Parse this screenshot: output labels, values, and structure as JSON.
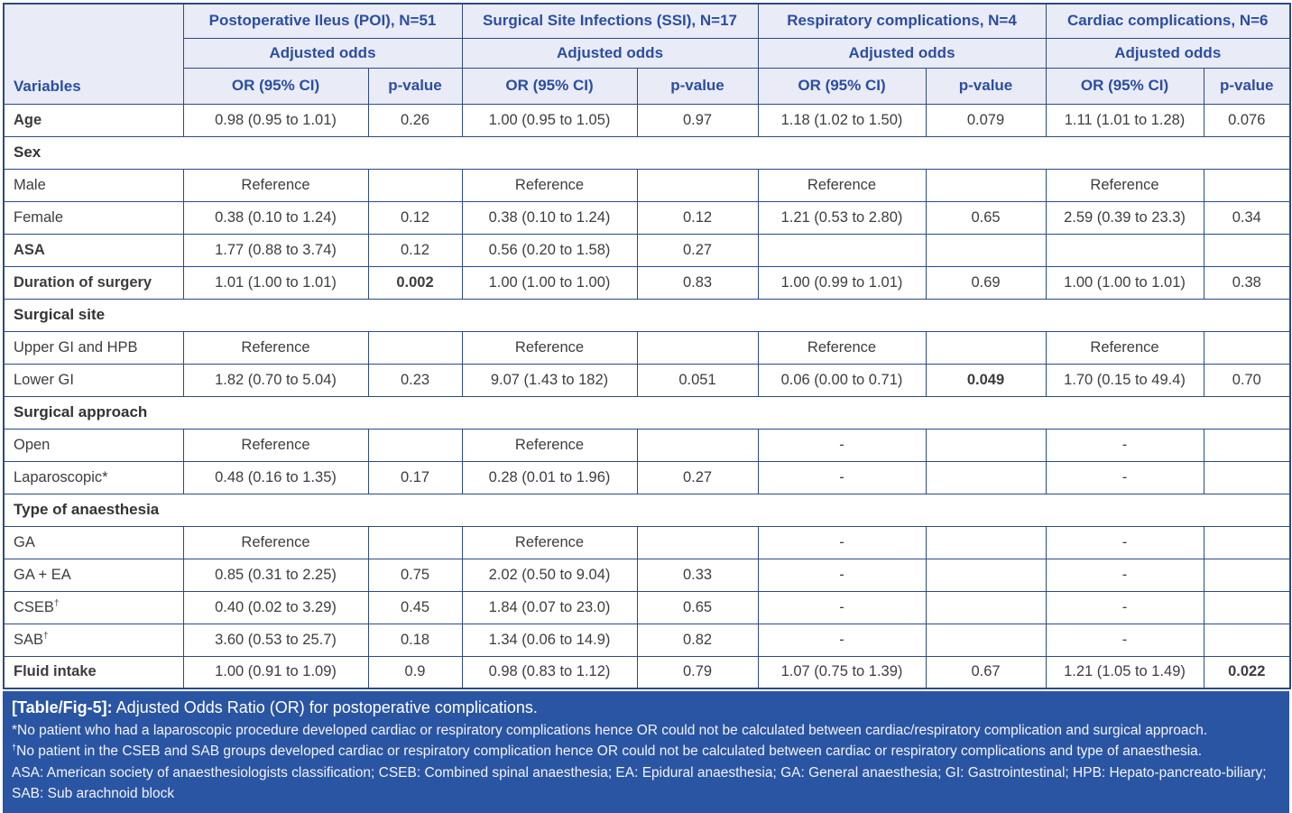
{
  "colors": {
    "header_bg": "#E9EBF6",
    "header_text": "#2B4EA2",
    "border": "#2B4A85",
    "body_text": "#3D3D3D",
    "footer_bg": "#2A55A3",
    "footer_text": "#FFFFFF"
  },
  "table": {
    "variables_header": "Variables",
    "groups": [
      {
        "title": "Postoperative Ileus (POI), N=51",
        "subtitle": "Adjusted odds",
        "or_header": "OR (95% CI)",
        "p_header": "p-value"
      },
      {
        "title": "Surgical Site Infections (SSI), N=17",
        "subtitle": "Adjusted odds",
        "or_header": "OR (95% CI)",
        "p_header": "p-value"
      },
      {
        "title": "Respiratory complications, N=4",
        "subtitle": "Adjusted odds",
        "or_header": "OR (95% CI)",
        "p_header": "p-value"
      },
      {
        "title": "Cardiac complications, N=6",
        "subtitle": "Adjusted odds",
        "or_header": "OR (95% CI)",
        "p_header": "p-value"
      }
    ],
    "rows": [
      {
        "type": "data",
        "label": "Age",
        "bold": true,
        "cells": [
          {
            "or": "0.98 (0.95 to 1.01)",
            "p": "0.26"
          },
          {
            "or": "1.00 (0.95 to 1.05)",
            "p": "0.97"
          },
          {
            "or": "1.18 (1.02 to 1.50)",
            "p": "0.079"
          },
          {
            "or": "1.11 (1.01 to 1.28)",
            "p": "0.076"
          }
        ]
      },
      {
        "type": "section",
        "label": "Sex"
      },
      {
        "type": "data",
        "label": "Male",
        "bold": false,
        "cells": [
          {
            "or": "Reference",
            "p": ""
          },
          {
            "or": "Reference",
            "p": ""
          },
          {
            "or": "Reference",
            "p": ""
          },
          {
            "or": "Reference",
            "p": ""
          }
        ]
      },
      {
        "type": "data",
        "label": "Female",
        "bold": false,
        "cells": [
          {
            "or": "0.38 (0.10 to 1.24)",
            "p": "0.12"
          },
          {
            "or": "0.38 (0.10 to 1.24)",
            "p": "0.12"
          },
          {
            "or": "1.21 (0.53 to 2.80)",
            "p": "0.65"
          },
          {
            "or": "2.59 (0.39 to 23.3)",
            "p": "0.34"
          }
        ]
      },
      {
        "type": "data",
        "label": "ASA",
        "bold": true,
        "cells": [
          {
            "or": "1.77 (0.88 to 3.74)",
            "p": "0.12"
          },
          {
            "or": "0.56 (0.20 to 1.58)",
            "p": "0.27"
          },
          {
            "or": "",
            "p": ""
          },
          {
            "or": "",
            "p": ""
          }
        ]
      },
      {
        "type": "data",
        "label": "Duration of surgery",
        "bold": true,
        "cells": [
          {
            "or": "1.01 (1.00 to 1.01)",
            "p": "0.002",
            "p_bold": true
          },
          {
            "or": "1.00 (1.00 to 1.00)",
            "p": "0.83"
          },
          {
            "or": "1.00 (0.99 to 1.01)",
            "p": "0.69"
          },
          {
            "or": "1.00 (1.00 to 1.01)",
            "p": "0.38"
          }
        ]
      },
      {
        "type": "section",
        "label": "Surgical site"
      },
      {
        "type": "data",
        "label": "Upper GI and HPB",
        "bold": false,
        "cells": [
          {
            "or": "Reference",
            "p": ""
          },
          {
            "or": "Reference",
            "p": ""
          },
          {
            "or": "Reference",
            "p": ""
          },
          {
            "or": "Reference",
            "p": ""
          }
        ]
      },
      {
        "type": "data",
        "label": "Lower GI",
        "bold": false,
        "cells": [
          {
            "or": "1.82 (0.70 to 5.04)",
            "p": "0.23"
          },
          {
            "or": "9.07 (1.43 to 182)",
            "p": "0.051"
          },
          {
            "or": "0.06 (0.00 to 0.71)",
            "p": "0.049",
            "p_bold": true
          },
          {
            "or": "1.70 (0.15 to 49.4)",
            "p": "0.70"
          }
        ]
      },
      {
        "type": "section",
        "label": "Surgical approach"
      },
      {
        "type": "data",
        "label": "Open",
        "bold": false,
        "cells": [
          {
            "or": "Reference",
            "p": ""
          },
          {
            "or": "Reference",
            "p": ""
          },
          {
            "or": "-",
            "p": ""
          },
          {
            "or": "-",
            "p": ""
          }
        ]
      },
      {
        "type": "data",
        "label": "Laparoscopic*",
        "bold": false,
        "cells": [
          {
            "or": "0.48 (0.16 to 1.35)",
            "p": "0.17"
          },
          {
            "or": "0.28 (0.01 to 1.96)",
            "p": "0.27"
          },
          {
            "or": "-",
            "p": ""
          },
          {
            "or": "-",
            "p": ""
          }
        ]
      },
      {
        "type": "section",
        "label": "Type of anaesthesia"
      },
      {
        "type": "data",
        "label": "GA",
        "bold": false,
        "cells": [
          {
            "or": "Reference",
            "p": ""
          },
          {
            "or": "Reference",
            "p": ""
          },
          {
            "or": "-",
            "p": ""
          },
          {
            "or": "-",
            "p": ""
          }
        ]
      },
      {
        "type": "data",
        "label": "GA + EA",
        "bold": false,
        "cells": [
          {
            "or": "0.85 (0.31 to 2.25)",
            "p": "0.75"
          },
          {
            "or": "2.02 (0.50 to 9.04)",
            "p": "0.33"
          },
          {
            "or": "-",
            "p": ""
          },
          {
            "or": "-",
            "p": ""
          }
        ]
      },
      {
        "type": "data",
        "label": "CSEB",
        "sup": "†",
        "bold": false,
        "cells": [
          {
            "or": "0.40 (0.02 to 3.29)",
            "p": "0.45"
          },
          {
            "or": "1.84 (0.07 to 23.0)",
            "p": "0.65"
          },
          {
            "or": "-",
            "p": ""
          },
          {
            "or": "-",
            "p": ""
          }
        ]
      },
      {
        "type": "data",
        "label": "SAB",
        "sup": "†",
        "bold": false,
        "cells": [
          {
            "or": "3.60 (0.53 to 25.7)",
            "p": "0.18"
          },
          {
            "or": "1.34 (0.06 to 14.9)",
            "p": "0.82"
          },
          {
            "or": "-",
            "p": ""
          },
          {
            "or": "-",
            "p": ""
          }
        ]
      },
      {
        "type": "data",
        "label": "Fluid intake",
        "bold": true,
        "cells": [
          {
            "or": "1.00 (0.91 to 1.09)",
            "p": "0.9"
          },
          {
            "or": "0.98 (0.83 to 1.12)",
            "p": "0.79"
          },
          {
            "or": "1.07 (0.75 to 1.39)",
            "p": "0.67"
          },
          {
            "or": "1.21 (1.05 to 1.49)",
            "p": "0.022",
            "p_bold": true
          }
        ]
      }
    ]
  },
  "footer": {
    "caption_label": "[Table/Fig-5]:",
    "caption_text": "Adjusted Odds Ratio (OR) for postoperative complications.",
    "footnotes": [
      {
        "marker": "*",
        "sup": false,
        "text": "No patient who had a laparoscopic procedure developed cardiac or respiratory complications hence OR could not be calculated between cardiac/respiratory complication and surgical approach."
      },
      {
        "marker": "†",
        "sup": true,
        "text": "No patient in the CSEB and SAB groups developed cardiac or respiratory complication hence OR could not be calculated between cardiac or respiratory complications and type of anaesthesia."
      },
      {
        "marker": "",
        "sup": false,
        "text": "ASA: American society of anaesthesiologists classification; CSEB: Combined spinal anaesthesia; EA: Epidural anaesthesia; GA: General anaesthesia; GI: Gastrointestinal; HPB: Hepato-pancreato-biliary; SAB: Sub arachnoid block"
      }
    ]
  }
}
